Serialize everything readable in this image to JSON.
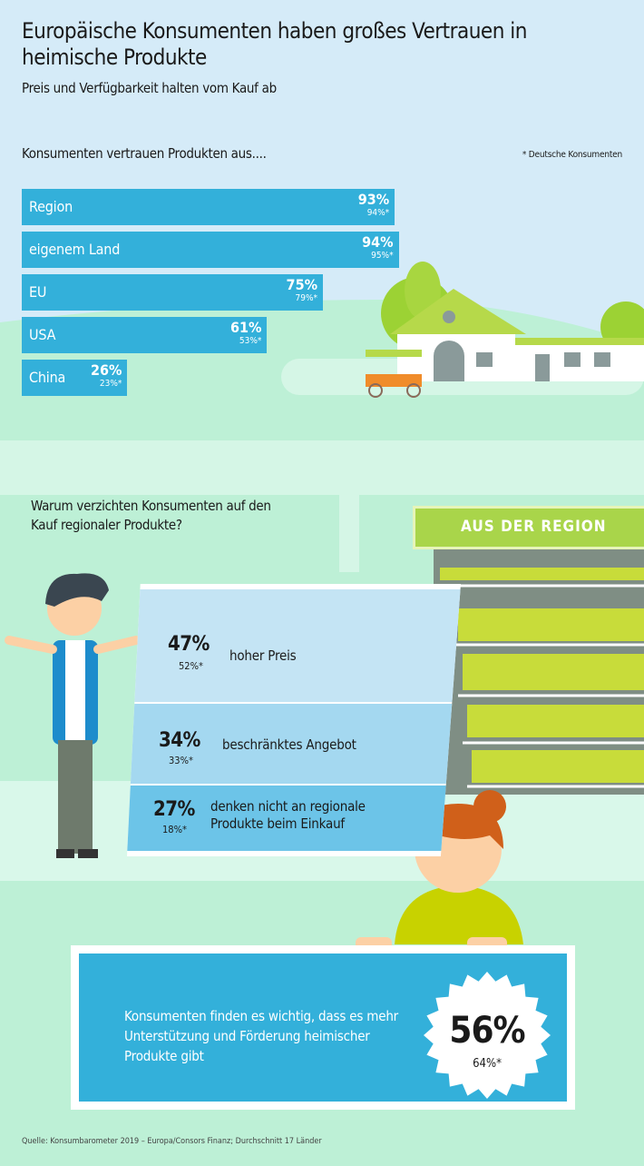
{
  "header": {
    "title": "Europäische Konsumenten haben großes Vertrauen in heimische Produkte",
    "subtitle": "Preis und Verfügbarkeit halten vom Kauf ab"
  },
  "chart_data": [
    {
      "type": "bar",
      "orientation": "horizontal",
      "title": "Konsumenten vertrauen Produkten aus....",
      "note": "* Deutsche Konsumenten",
      "unit": "%",
      "categories": [
        "Region",
        "eigenem Land",
        "EU",
        "USA",
        "China"
      ],
      "series": [
        {
          "name": "",
          "values": [
            93,
            94,
            75,
            61,
            26
          ]
        },
        {
          "name": "* Deutsche Konsumenten",
          "values": [
            94,
            95,
            79,
            53,
            23
          ]
        }
      ],
      "labels": [
        "93%",
        "94%",
        "75%",
        "61%",
        "26%"
      ],
      "labels_de": [
        "94%*",
        "95%*",
        "79%*",
        "53%*",
        "23%*"
      ],
      "color": "#33b0da"
    },
    {
      "type": "table",
      "title": "Warum verzichten Konsumenten auf den Kauf regionaler Produkte?",
      "rows": [
        {
          "value": "47%",
          "value_de": "52%*",
          "label": "hoher Preis"
        },
        {
          "value": "34%",
          "value_de": "33%*",
          "label": "beschränktes Angebot"
        },
        {
          "value": "27%",
          "value_de": "18%*",
          "label": "denken nicht an regionale Produkte beim Einkauf"
        }
      ]
    }
  ],
  "sign": "AUS DER REGION",
  "highlight": {
    "text": "Konsumenten finden es wichtig, dass es mehr Unterstützung und Förderung heimischer Produkte gibt",
    "value": "56%",
    "value_de": "64%*"
  },
  "source": "Quelle: Konsumbarometer 2019 – Europa/Consors Finanz; Durchschnitt 17 Länder",
  "colors": {
    "bar": "#33b0da",
    "sky": "#d5ebf8",
    "meadow": "#bdf0d6",
    "row1": "#c4e4f4",
    "row2": "#a4d8f0",
    "row3": "#6cc4e8",
    "sign": "#a9d54a"
  }
}
